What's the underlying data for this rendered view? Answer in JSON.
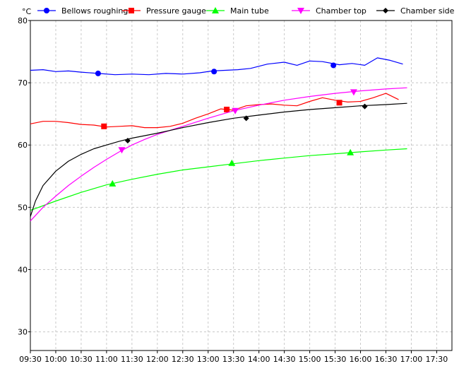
{
  "chart_data": {
    "type": "line",
    "unit": "°C",
    "x_ticks": [
      "09:30",
      "10:00",
      "10:30",
      "11:00",
      "11:30",
      "12:00",
      "12:30",
      "13:00",
      "13:30",
      "14:00",
      "14:30",
      "15:00",
      "15:30",
      "16:00",
      "16:30",
      "17:00",
      "17:30"
    ],
    "y_ticks": [
      "30",
      "40",
      "50",
      "60",
      "70",
      "80"
    ],
    "xlim": [
      "09:30",
      "17:48"
    ],
    "ylim": [
      27,
      80
    ],
    "grid": true,
    "legend_position": "top",
    "series": [
      {
        "name": "Bellows roughing",
        "color": "#0000ff",
        "marker": "circle",
        "x": [
          "09:30",
          "09:45",
          "10:00",
          "10:15",
          "10:30",
          "10:50",
          "11:10",
          "11:30",
          "11:50",
          "12:10",
          "12:30",
          "12:50",
          "13:05",
          "13:20",
          "13:35",
          "13:50",
          "14:10",
          "14:30",
          "14:45",
          "15:00",
          "15:15",
          "15:35",
          "15:50",
          "16:05",
          "16:20",
          "16:35",
          "16:50"
        ],
        "y": [
          72.0,
          72.1,
          71.8,
          71.9,
          71.7,
          71.5,
          71.3,
          71.4,
          71.3,
          71.5,
          71.4,
          71.6,
          71.9,
          72.0,
          72.1,
          72.3,
          73.0,
          73.3,
          72.8,
          73.5,
          73.4,
          72.9,
          73.1,
          72.8,
          74.0,
          73.6,
          73.0
        ],
        "markers_x": [
          "10:50",
          "13:07",
          "15:28"
        ],
        "markers_y": [
          71.5,
          71.8,
          72.8
        ]
      },
      {
        "name": "Pressure gauge",
        "color": "#ff0000",
        "marker": "square",
        "x": [
          "09:30",
          "09:45",
          "10:00",
          "10:15",
          "10:30",
          "10:45",
          "11:00",
          "11:15",
          "11:30",
          "11:45",
          "12:00",
          "12:15",
          "12:30",
          "12:45",
          "13:00",
          "13:15",
          "13:30",
          "13:45",
          "14:00",
          "14:15",
          "14:30",
          "14:45",
          "15:00",
          "15:15",
          "15:30",
          "15:45",
          "16:00",
          "16:15",
          "16:30",
          "16:45"
        ],
        "y": [
          63.4,
          63.8,
          63.8,
          63.6,
          63.3,
          63.2,
          62.9,
          63.0,
          63.1,
          62.8,
          62.8,
          63.0,
          63.5,
          64.3,
          65.0,
          65.8,
          65.6,
          66.3,
          66.5,
          66.6,
          66.4,
          66.3,
          67.0,
          67.6,
          67.2,
          66.9,
          67.0,
          67.6,
          68.3,
          67.3
        ],
        "markers_x": [
          "10:57",
          "13:22",
          "15:35"
        ],
        "markers_y": [
          63.0,
          65.7,
          66.8
        ]
      },
      {
        "name": "Main tube",
        "color": "#00ff00",
        "marker": "triangle-up",
        "x": [
          "09:30",
          "10:00",
          "10:30",
          "11:00",
          "11:30",
          "12:00",
          "12:30",
          "13:00",
          "13:30",
          "14:00",
          "14:30",
          "15:00",
          "15:30",
          "16:00",
          "16:30",
          "16:55"
        ],
        "y": [
          49.5,
          51.0,
          52.4,
          53.6,
          54.5,
          55.3,
          56.0,
          56.5,
          57.0,
          57.5,
          57.9,
          58.3,
          58.6,
          58.9,
          59.2,
          59.4
        ],
        "markers_x": [
          "11:07",
          "13:28",
          "15:48"
        ],
        "markers_y": [
          53.8,
          57.1,
          58.8
        ]
      },
      {
        "name": "Chamber top",
        "color": "#ff00ff",
        "marker": "triangle-down",
        "x": [
          "09:30",
          "09:45",
          "10:00",
          "10:15",
          "10:30",
          "10:45",
          "11:00",
          "11:15",
          "11:30",
          "11:45",
          "12:00",
          "12:30",
          "13:00",
          "13:30",
          "14:00",
          "14:30",
          "15:00",
          "15:30",
          "16:00",
          "16:30",
          "16:55"
        ],
        "y": [
          47.8,
          50.0,
          51.8,
          53.5,
          55.0,
          56.4,
          57.7,
          58.9,
          60.0,
          60.9,
          61.7,
          63.0,
          64.3,
          65.5,
          66.4,
          67.2,
          67.8,
          68.3,
          68.7,
          69.0,
          69.2
        ],
        "markers_x": [
          "11:18",
          "13:32",
          "15:52"
        ],
        "markers_y": [
          59.2,
          65.5,
          68.5
        ]
      },
      {
        "name": "Chamber side",
        "color": "#000000",
        "marker": "diamond",
        "x": [
          "09:30",
          "09:36",
          "09:45",
          "10:00",
          "10:15",
          "10:30",
          "10:45",
          "11:00",
          "11:15",
          "11:30",
          "12:00",
          "12:30",
          "13:00",
          "13:30",
          "14:00",
          "14:30",
          "15:00",
          "15:30",
          "16:00",
          "16:30",
          "16:55"
        ],
        "y": [
          48.5,
          51.0,
          53.5,
          55.8,
          57.4,
          58.5,
          59.4,
          60.0,
          60.6,
          61.1,
          61.9,
          62.8,
          63.6,
          64.3,
          64.8,
          65.3,
          65.7,
          66.0,
          66.3,
          66.5,
          66.7
        ],
        "markers_x": [
          "11:25",
          "13:45",
          "16:05"
        ],
        "markers_y": [
          60.7,
          64.3,
          66.2
        ]
      }
    ]
  }
}
